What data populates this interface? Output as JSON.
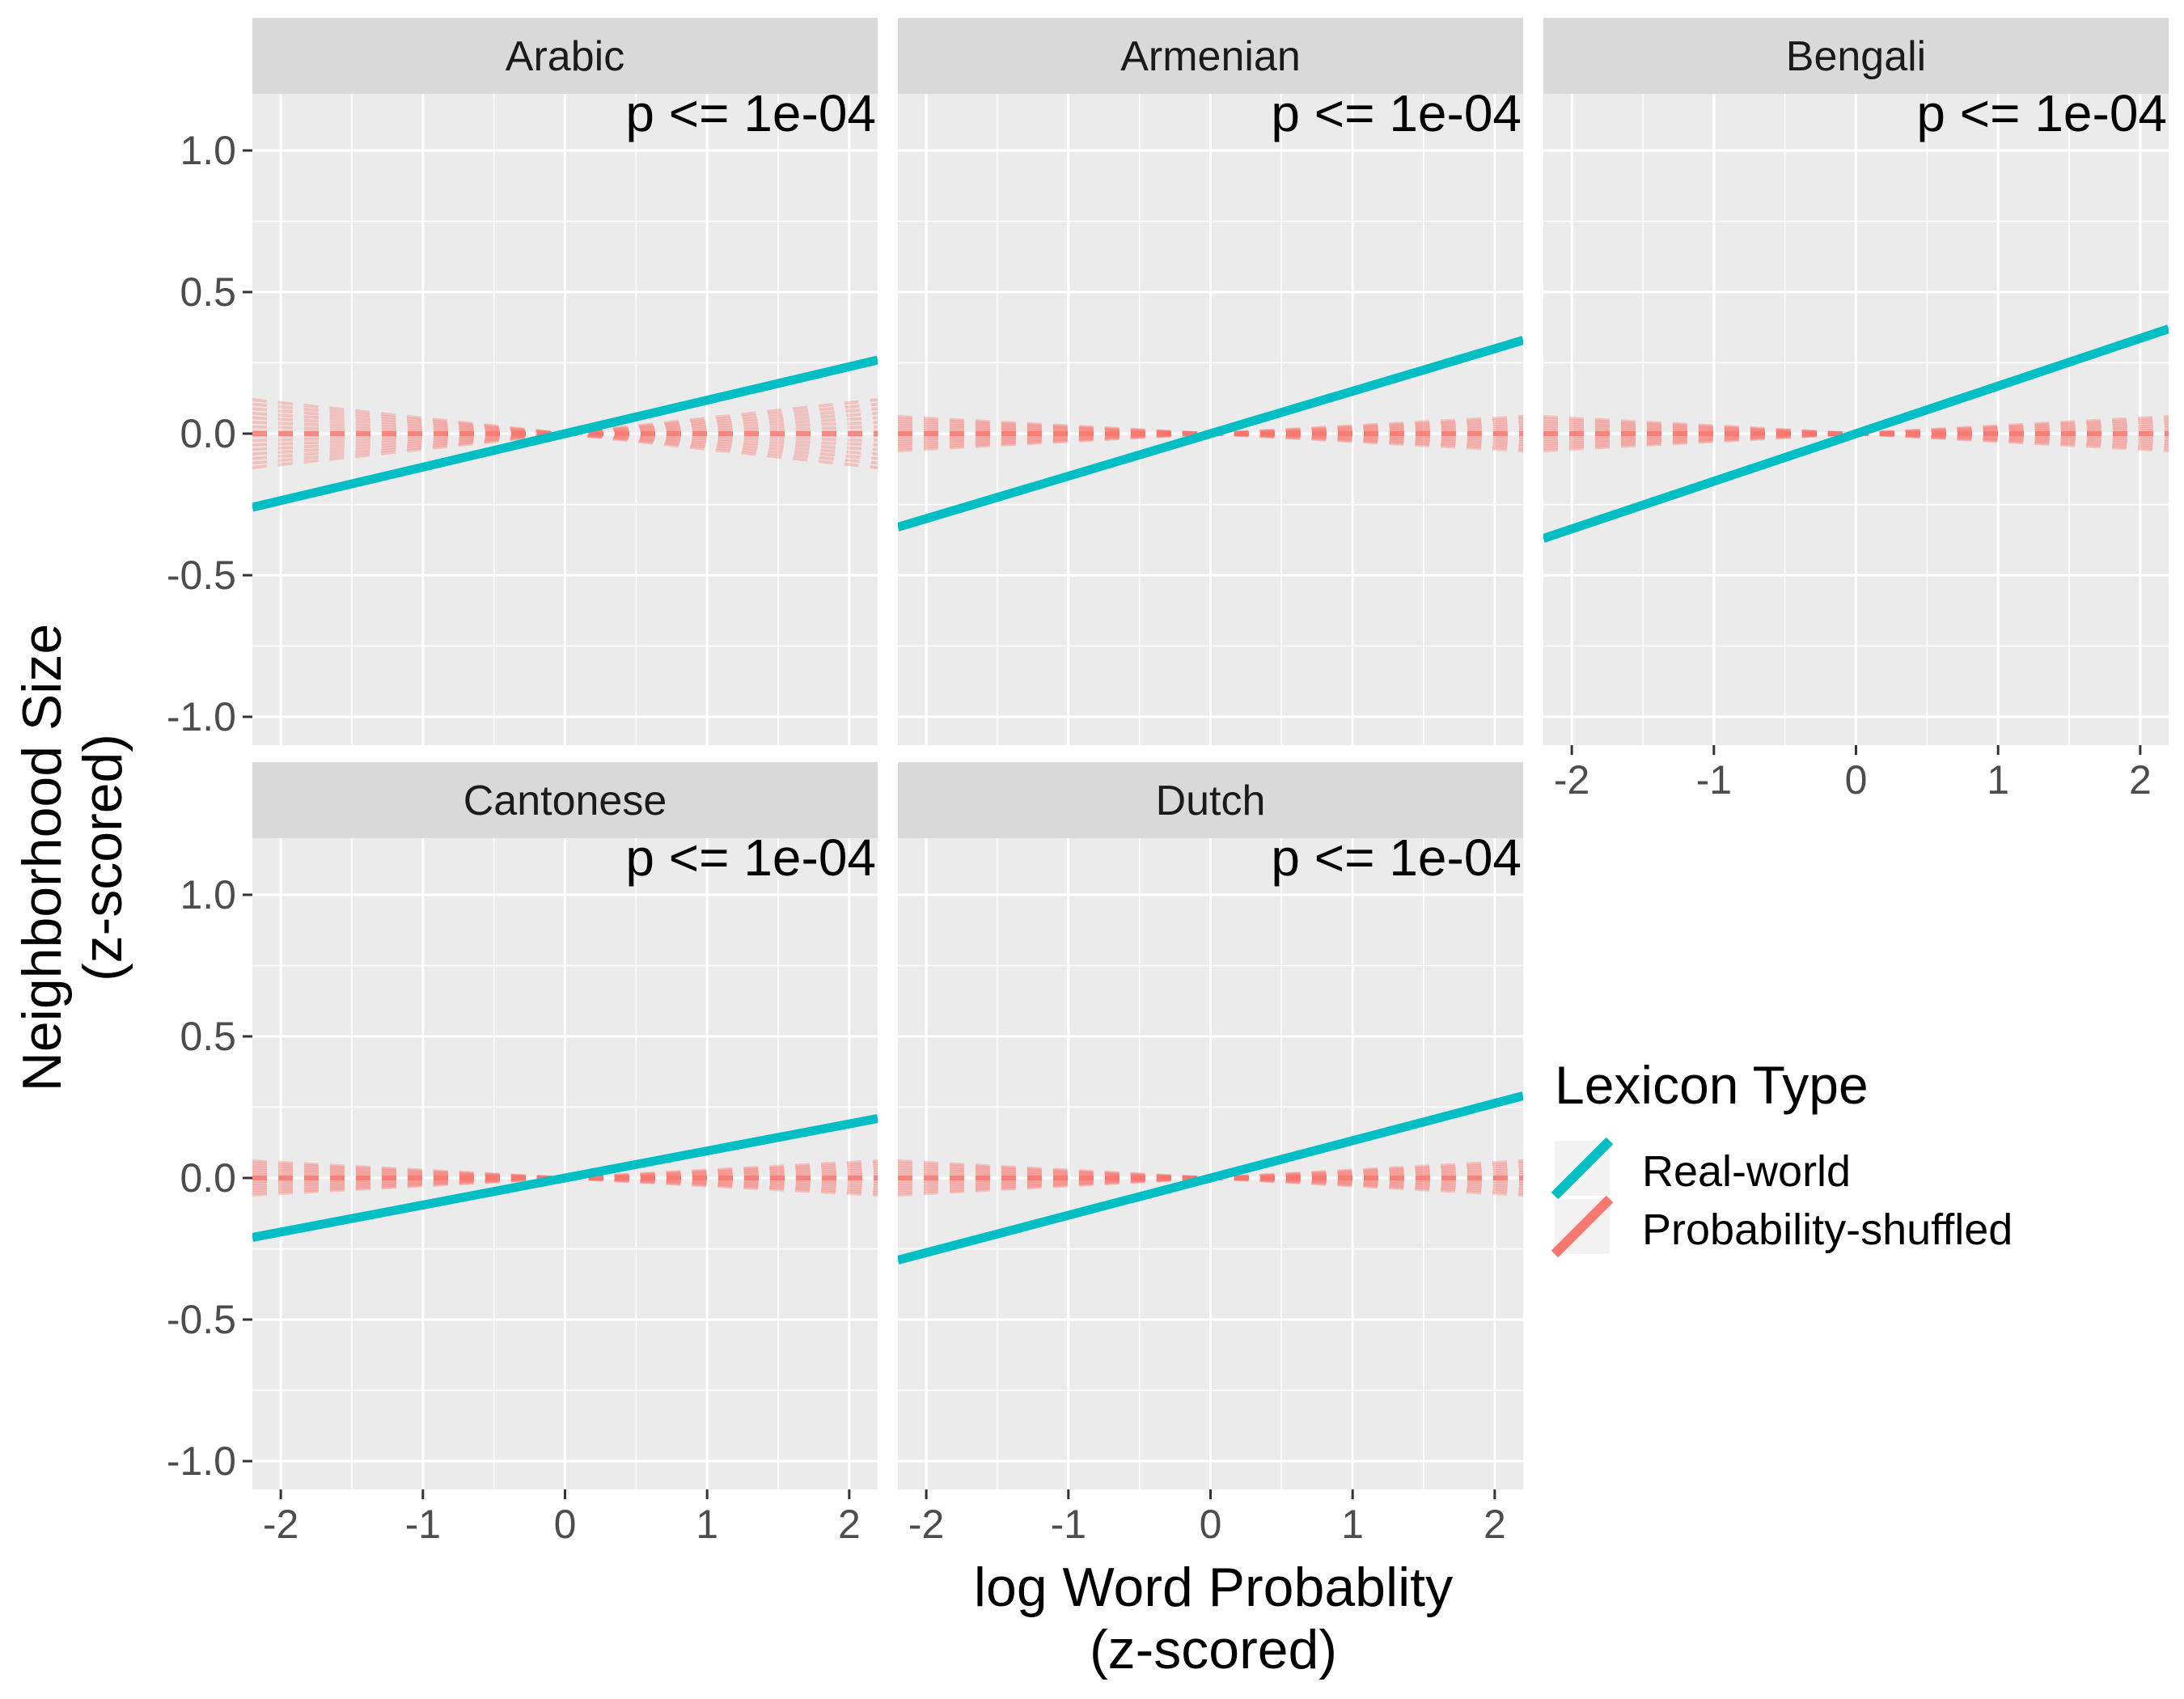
{
  "chart_data": {
    "type": "line",
    "layout": "facet_wrap",
    "xlabel": [
      "log Word Probablity",
      "(z-scored)"
    ],
    "ylabel": [
      "Neighborhood Size",
      "(z-scored)"
    ],
    "xlim": [
      -2.2,
      2.2
    ],
    "ylim": [
      -1.1,
      1.2
    ],
    "x_ticks": [
      -2,
      -1,
      0,
      1,
      2
    ],
    "x_tick_labels": [
      "-2",
      "-1",
      "0",
      "1",
      "2"
    ],
    "y_ticks": [
      -1.0,
      -0.5,
      0.0,
      0.5,
      1.0
    ],
    "y_tick_labels": [
      "-1.0",
      "-0.5",
      "0.0",
      "0.5",
      "1.0"
    ],
    "grid": true,
    "legend": {
      "title": "Lexicon Type",
      "position": "right",
      "entries": [
        {
          "label": "Real-world",
          "color": "#00BFC4"
        },
        {
          "label": "Probability-shuffled",
          "color": "#F8766D"
        }
      ]
    },
    "colors": {
      "real": "#00BFC4",
      "shuffled": "#F8766D",
      "panel_bg": "#EBEBEB",
      "strip_bg": "#D9D9D9",
      "grid": "#FFFFFF"
    },
    "panels": [
      {
        "title": "Arabic",
        "annotation": "p <= 1e-04",
        "real_line": {
          "x": [
            -2.2,
            2.2
          ],
          "y": [
            -0.26,
            0.26
          ]
        },
        "shuffled_spread": {
          "x": [
            -2.2,
            2.2
          ],
          "y_half_range": [
            0.12,
            0.12
          ]
        }
      },
      {
        "title": "Armenian",
        "annotation": "p <= 1e-04",
        "real_line": {
          "x": [
            -2.2,
            2.2
          ],
          "y": [
            -0.33,
            0.33
          ]
        },
        "shuffled_spread": {
          "x": [
            -2.2,
            2.2
          ],
          "y_half_range": [
            0.06,
            0.06
          ]
        }
      },
      {
        "title": "Bengali",
        "annotation": "p <= 1e-04",
        "real_line": {
          "x": [
            -2.2,
            2.2
          ],
          "y": [
            -0.37,
            0.37
          ]
        },
        "shuffled_spread": {
          "x": [
            -2.2,
            2.2
          ],
          "y_half_range": [
            0.06,
            0.06
          ]
        }
      },
      {
        "title": "Cantonese",
        "annotation": "p <= 1e-04",
        "real_line": {
          "x": [
            -2.2,
            2.2
          ],
          "y": [
            -0.21,
            0.21
          ]
        },
        "shuffled_spread": {
          "x": [
            -2.2,
            2.2
          ],
          "y_half_range": [
            0.06,
            0.06
          ]
        }
      },
      {
        "title": "Dutch",
        "annotation": "p <= 1e-04",
        "real_line": {
          "x": [
            -2.2,
            2.2
          ],
          "y": [
            -0.29,
            0.29
          ]
        },
        "shuffled_spread": {
          "x": [
            -2.2,
            2.2
          ],
          "y_half_range": [
            0.06,
            0.06
          ]
        }
      }
    ]
  }
}
